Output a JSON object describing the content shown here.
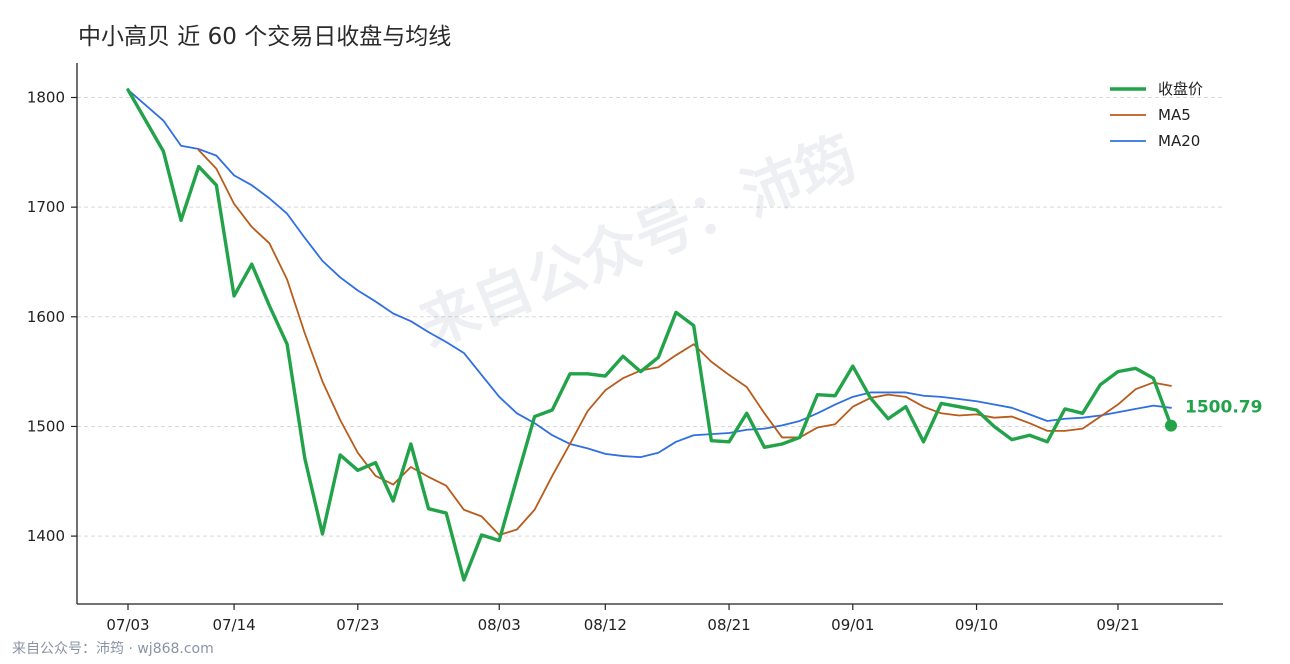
{
  "watermark": {
    "center_text": "来自公众号：沛筠",
    "corner_text": "来自公众号：沛筠 · wj868.com"
  },
  "colors": {
    "close": "#22a34a",
    "ma5": "#b85c1c",
    "ma20": "#2f6fe0",
    "grid": "#d9d9d9"
  },
  "chart_data": {
    "type": "line",
    "title": "中小高贝 近 60 个交易日收盘与均线",
    "xlabel": "",
    "ylabel": "",
    "ylim": [
      1440,
      1830
    ],
    "yticks": [
      1400,
      1500,
      1600,
      1700,
      1800
    ],
    "grid": true,
    "legend_position": "top-right",
    "x": [
      "07/03",
      "07/07",
      "07/08",
      "07/09",
      "07/10",
      "07/11",
      "07/14",
      "07/15",
      "07/16",
      "07/17",
      "07/18",
      "07/21",
      "07/22",
      "07/23",
      "07/24",
      "07/25",
      "07/28",
      "07/29",
      "07/30",
      "07/31",
      "08/01",
      "08/03",
      "08/05",
      "08/06",
      "08/07",
      "08/08",
      "08/11",
      "08/12",
      "08/13",
      "08/14",
      "08/15",
      "08/18",
      "08/19",
      "08/20",
      "08/21",
      "08/22",
      "08/25",
      "08/26",
      "08/27",
      "08/28",
      "08/29",
      "09/01",
      "09/02",
      "09/03",
      "09/04",
      "09/05",
      "09/08",
      "09/09",
      "09/10",
      "09/11",
      "09/12",
      "09/15",
      "09/16",
      "09/17",
      "09/18",
      "09/19",
      "09/21",
      "09/22",
      "09/23",
      "09/24"
    ],
    "xticks": [
      "07/03",
      "07/14",
      "07/23",
      "08/03",
      "08/12",
      "08/21",
      "09/01",
      "09/10",
      "09/21"
    ],
    "series": [
      {
        "name": "收盘价",
        "values": [
          1807,
          1779,
          1751,
          1688,
          1737,
          1720,
          1619,
          1648,
          1610,
          1575,
          1471,
          1402,
          1474,
          1460,
          1467,
          1432,
          1484,
          1425,
          1421,
          1360,
          1401,
          1396,
          1453,
          1509,
          1515,
          1548,
          1548,
          1546,
          1564,
          1550,
          1563,
          1604,
          1592,
          1487,
          1486,
          1512,
          1481,
          1484,
          1490,
          1529,
          1528,
          1555,
          1526,
          1507,
          1518,
          1486,
          1521,
          1518,
          1515,
          1500,
          1488,
          1492,
          1486,
          1516,
          1512,
          1538,
          1550,
          1553,
          1544,
          1500.79
        ]
      },
      {
        "name": "MA5",
        "values": [
          null,
          null,
          null,
          null,
          1752,
          1735,
          1703,
          1682,
          1667,
          1634,
          1585,
          1541,
          1506,
          1476,
          1455,
          1447,
          1463,
          1454,
          1446,
          1424,
          1418,
          1401,
          1406,
          1424,
          1455,
          1484,
          1514,
          1533,
          1544,
          1551,
          1554,
          1565,
          1575,
          1559,
          1547,
          1536,
          1512,
          1490,
          1490,
          1499,
          1502,
          1518,
          1526,
          1529,
          1527,
          1518,
          1512,
          1510,
          1511,
          1508,
          1509,
          1503,
          1496,
          1496,
          1498,
          1509,
          1520,
          1534,
          1540,
          1537
        ]
      },
      {
        "name": "MA20",
        "values": [
          1807,
          1793,
          1779,
          1756,
          1753,
          1747,
          1729,
          1720,
          1708,
          1694,
          1672,
          1651,
          1636,
          1624,
          1614,
          1603,
          1596,
          1586,
          1577,
          1567,
          1547,
          1527,
          1512,
          1503,
          1492,
          1484,
          1480,
          1475,
          1473,
          1472,
          1476,
          1486,
          1492,
          1493,
          1494,
          1497,
          1498,
          1501,
          1505,
          1512,
          1520,
          1527,
          1531,
          1531,
          1531,
          1528,
          1527,
          1525,
          1523,
          1520,
          1517,
          1511,
          1505,
          1507,
          1508,
          1510,
          1513,
          1516,
          1519,
          1517
        ]
      }
    ],
    "annotations": [
      {
        "x": "09/24",
        "y": 1500.79,
        "text": "1500.79"
      }
    ]
  }
}
